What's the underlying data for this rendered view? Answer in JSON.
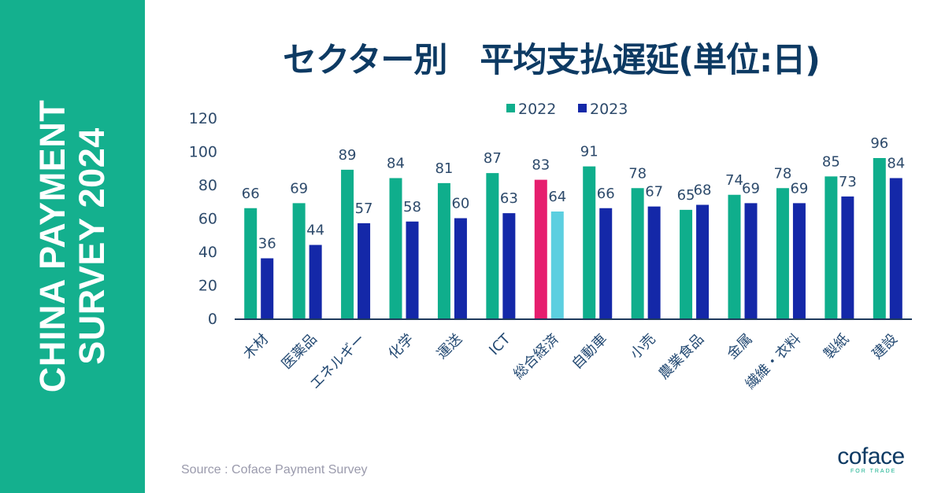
{
  "sidebar": {
    "line1": "CHINA PAYMENT",
    "line2": "SURVEY 2024"
  },
  "source": "Source : Coface Payment Survey",
  "logo": {
    "word": "coface",
    "tagline": "FOR TRADE"
  },
  "colors": {
    "sidebar": "#14b08e",
    "series_2022": "#0fae8c",
    "series_2023": "#1428a8",
    "highlight_2022": "#e61e6e",
    "highlight_2023": "#5ccfe0",
    "title": "#0d3a63"
  },
  "chart_data": {
    "type": "bar",
    "title": "セクター別　平均支払遅延(単位:日)",
    "xlabel": "",
    "ylabel": "",
    "ylim": [
      0,
      120
    ],
    "yticks": [
      0,
      20,
      40,
      60,
      80,
      100,
      120
    ],
    "grid": false,
    "legend_position": "top-center",
    "highlight_category": "総合経済",
    "categories": [
      "木材",
      "医薬品",
      "エネルギー",
      "化学",
      "運送",
      "ICT",
      "総合経済",
      "自動車",
      "小売",
      "農業食品",
      "金属",
      "繊維・衣料",
      "製紙",
      "建設"
    ],
    "series": [
      {
        "name": "2022",
        "values": [
          66,
          69,
          89,
          84,
          81,
          87,
          83,
          91,
          78,
          65,
          74,
          78,
          85,
          96
        ]
      },
      {
        "name": "2023",
        "values": [
          36,
          44,
          57,
          58,
          60,
          63,
          64,
          66,
          67,
          68,
          69,
          69,
          73,
          84
        ]
      }
    ]
  }
}
